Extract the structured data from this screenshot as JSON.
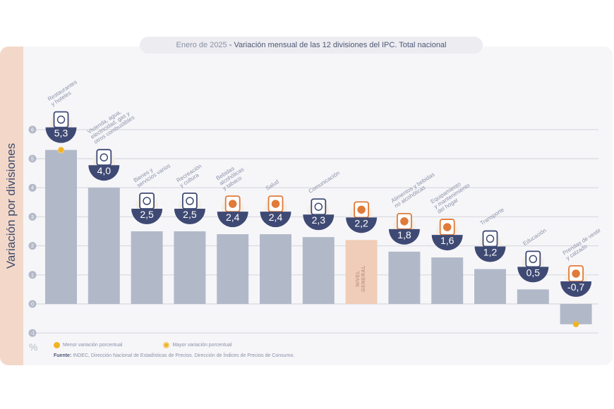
{
  "header": {
    "date": "Enero de 2025",
    "separator": " - ",
    "title": "Variación mensual de las 12 divisiones del IPC. Total nacional"
  },
  "y_axis_label": "Variación por divisiones",
  "unit_symbol": "%",
  "legend": {
    "min_label": "Menor variación porcentual",
    "max_label": "Mayor variación porcentual"
  },
  "source": {
    "prefix": "Fuente:",
    "text": " INDEC, Dirección Nacional de Estadísticas de Precios. Dirección de Índices de Precios de Consumo."
  },
  "colors": {
    "bar": "#b1b9c9",
    "general_bar": "#f0cdb9",
    "bowl": "#3f4a74",
    "accent_orange": "#e07b39",
    "highlight_dot": "#f0b323",
    "grid": "#dcdde3"
  },
  "chart_data": {
    "type": "bar",
    "title": "Enero de 2025 - Variación mensual de las 12 divisiones del IPC. Total nacional",
    "xlabel": "",
    "ylabel": "Variación por divisiones (%)",
    "ylim": [
      -1,
      6
    ],
    "yticks": [
      -1,
      0,
      1,
      2,
      3,
      4,
      5,
      6
    ],
    "grid": true,
    "legend_position": "bottom-left",
    "categories": [
      "Restaurantes y hoteles",
      "Vivienda, agua, electricidad, gas y otros combustibles",
      "Bienes y servicios varios",
      "Recreación y cultura",
      "Bebidas alcohólicas y tabaco",
      "Salud",
      "Comunicación",
      "Nivel general",
      "Alimentos y bebidas no alcohólicas",
      "Equipamiento y mantenimiento del hogar",
      "Transporte",
      "Educación",
      "Prendas de vestir y calzado"
    ],
    "label_lines": [
      [
        "Restaurantes",
        "y hoteles"
      ],
      [
        "Vivienda, agua,",
        "electricidad, gas y",
        "otros combustibles"
      ],
      [
        "Bienes y",
        "servicios varios"
      ],
      [
        "Recreación",
        "y cultura"
      ],
      [
        "Bebidas",
        "alcohólicas",
        "y tabaco"
      ],
      [
        "Salud"
      ],
      [
        "Comunicación"
      ],
      [],
      [
        "Alimentos y bebidas",
        "no alcohólicas"
      ],
      [
        "Equipamiento",
        "y mantenimiento",
        "del hogar"
      ],
      [
        "Transporte"
      ],
      [
        "Educación"
      ],
      [
        "Prendas de vestir",
        "y calzado"
      ]
    ],
    "values": [
      5.3,
      4.0,
      2.5,
      2.5,
      2.4,
      2.4,
      2.3,
      2.2,
      1.8,
      1.6,
      1.2,
      0.5,
      -0.7
    ],
    "value_labels": [
      "5,3",
      "4,0",
      "2,5",
      "2,5",
      "2,4",
      "2,4",
      "2,3",
      "2,2",
      "1,8",
      "1,6",
      "1,2",
      "0,5",
      "-0,7"
    ],
    "icons": [
      "cutlery-icon",
      "house-bulb-icon",
      "scissors-icon",
      "umbrella-icon",
      "bottle-icon",
      "first-aid-icon",
      "phone-icon",
      "grocery-basket-icon",
      "chicken-icon",
      "appliance-icon",
      "car-icon",
      "book-icon",
      "shirt-icon"
    ],
    "general_bar_label": [
      "NIVEL",
      "GENERAL"
    ],
    "general_index": 7,
    "max_index": 0,
    "min_index": 12
  }
}
